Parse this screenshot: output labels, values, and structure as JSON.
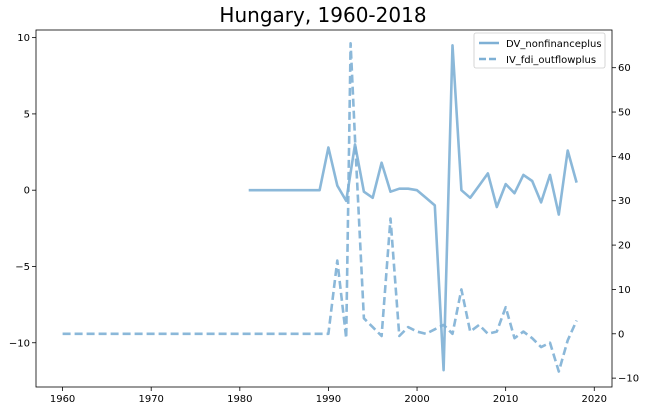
{
  "chart_data": {
    "type": "line",
    "title": "Hungary, 1960-2018",
    "xlabel": "",
    "ylabel_left": "",
    "ylabel_right": "",
    "xlim": [
      1957,
      2022
    ],
    "ylim_left": [
      -12.9,
      10.5
    ],
    "ylim_right": [
      -12.0,
      68.5
    ],
    "xticks": [
      1960,
      1970,
      1980,
      1990,
      2000,
      2010,
      2020
    ],
    "yticks_left": [
      10,
      5,
      0,
      -5,
      -10
    ],
    "yticks_right": [
      60,
      50,
      40,
      30,
      20,
      10,
      0,
      -10
    ],
    "series": [
      {
        "name": "DV_nonfinanceplus",
        "axis": "left",
        "style": "solid",
        "color": "#7eb0d5",
        "x": [
          1981,
          1982,
          1983,
          1984,
          1985,
          1986,
          1987,
          1988,
          1989,
          1990,
          1991,
          1992,
          1993,
          1994,
          1995,
          1996,
          1997,
          1998,
          1999,
          2000,
          2001,
          2002,
          2003,
          2004,
          2005,
          2006,
          2007,
          2008,
          2009,
          2010,
          2011,
          2012,
          2013,
          2014,
          2015,
          2016,
          2017,
          2018
        ],
        "values": [
          0,
          0,
          0,
          0,
          0,
          0,
          0,
          0,
          0,
          2.8,
          0.3,
          -0.7,
          3.0,
          -0.1,
          -0.5,
          1.8,
          -0.1,
          0.1,
          0.1,
          0.0,
          -0.5,
          -1.0,
          -11.8,
          9.5,
          0.0,
          -0.5,
          0.3,
          1.1,
          -1.1,
          0.4,
          -0.2,
          1.0,
          0.6,
          -0.8,
          1.0,
          -1.6,
          2.6,
          0.5
        ]
      },
      {
        "name": "IV_fdi_outflowplus",
        "axis": "right",
        "style": "dashed",
        "color": "#7eb0d5",
        "x": [
          1960,
          1965,
          1970,
          1975,
          1980,
          1985,
          1989,
          1990,
          1991,
          1992,
          1992.5,
          1993,
          1994,
          1995,
          1996,
          1997,
          1998,
          1999,
          2000,
          2001,
          2002,
          2003,
          2004,
          2005,
          2006,
          2007,
          2008,
          2009,
          2010,
          2011,
          2012,
          2013,
          2014,
          2015,
          2016,
          2017,
          2018
        ],
        "values": [
          0,
          0,
          0,
          0,
          0,
          0,
          0,
          0,
          16.5,
          -1.0,
          65.5,
          44.0,
          3.5,
          1.5,
          -0.5,
          26.0,
          -0.5,
          1.5,
          0.5,
          0.0,
          1.0,
          2.0,
          0.0,
          10.0,
          0.5,
          2.0,
          0.0,
          0.5,
          6.0,
          -1.0,
          0.5,
          -1.0,
          -3.0,
          -2.0,
          -8.5,
          -1.5,
          3.0
        ]
      }
    ],
    "legend": {
      "position": "top-right",
      "entries": [
        "DV_nonfinanceplus",
        "IV_fdi_outflowplus"
      ]
    }
  }
}
